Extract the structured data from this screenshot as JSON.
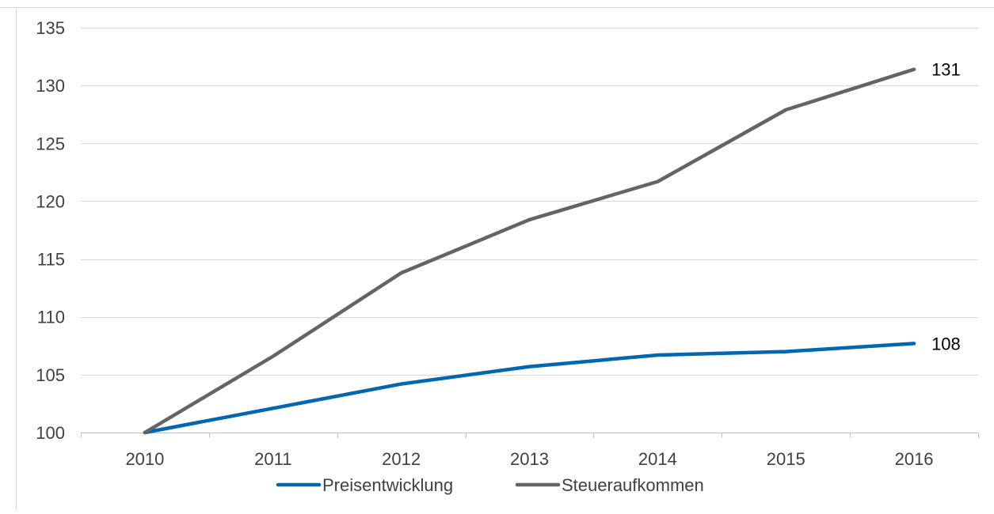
{
  "chart_data": {
    "type": "line",
    "title": "",
    "xlabel": "",
    "ylabel": "",
    "categories": [
      "2010",
      "2011",
      "2012",
      "2013",
      "2014",
      "2015",
      "2016"
    ],
    "ylim": [
      100,
      135
    ],
    "yticks": [
      100,
      105,
      110,
      115,
      120,
      125,
      130,
      135
    ],
    "grid": true,
    "legend_position": "bottom",
    "series": [
      {
        "name": "Preisentwicklung",
        "color": "#0067B1",
        "values": [
          100,
          102.1,
          104.2,
          105.7,
          106.7,
          107.0,
          107.7
        ],
        "end_label": "108"
      },
      {
        "name": "Steueraufkommen",
        "color": "#646464",
        "values": [
          100,
          106.6,
          113.8,
          118.4,
          121.7,
          127.9,
          131.4
        ],
        "end_label": "131"
      }
    ],
    "colors": {
      "grid": "#D9D9D9",
      "axis": "#BFBFBF",
      "frame": "#D9D9D9",
      "text": "#404040"
    }
  }
}
